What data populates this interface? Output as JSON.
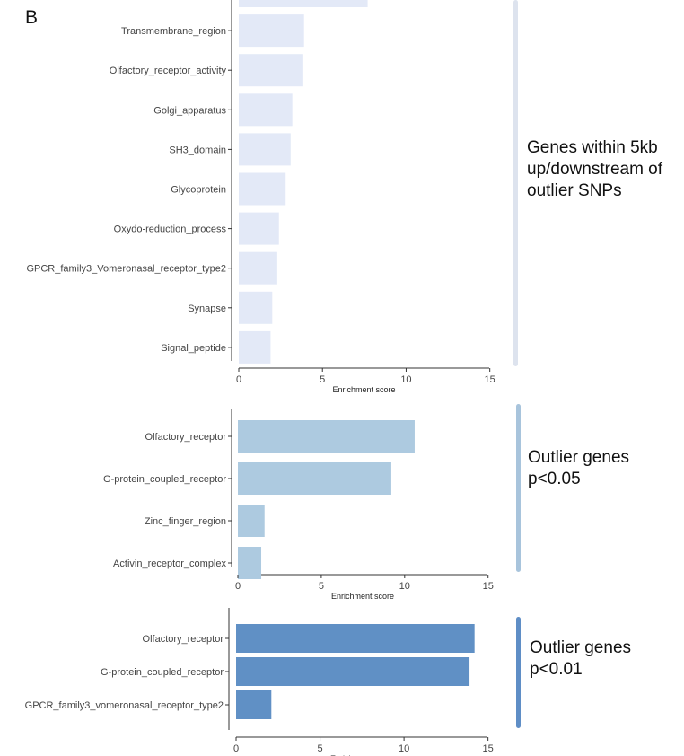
{
  "panel_label": "B",
  "chart_data": [
    {
      "type": "bar",
      "orientation": "horizontal",
      "color": "#e3e9f7",
      "categories": [
        "",
        "Transmembrane_region",
        "Olfactory_receptor_activity",
        "Golgi_apparatus",
        "SH3_domain",
        "Glycoprotein",
        "Oxydo-reduction_process",
        "GPCR_family3_Vomeronasal_receptor_type2",
        "Synapse",
        "Signal_peptide"
      ],
      "values": [
        7.7,
        3.9,
        3.8,
        3.2,
        3.1,
        2.8,
        2.4,
        2.3,
        2.0,
        1.9
      ],
      "xlim": [
        0,
        15.5
      ],
      "xticks": [
        0,
        5,
        10,
        15
      ],
      "xlabel": "Enrichment score",
      "side_label": [
        "Genes within 5kb",
        "up/downstream of",
        "outlier SNPs"
      ],
      "side_bar_color": "#dde3ee"
    },
    {
      "type": "bar",
      "orientation": "horizontal",
      "color": "#adcae0",
      "categories": [
        "Olfactory_receptor",
        "G-protein_coupled_receptor",
        "Zinc_finger_region",
        "Activin_receptor_complex"
      ],
      "values": [
        10.6,
        9.2,
        1.6,
        1.4
      ],
      "xlim": [
        0,
        15.5
      ],
      "xticks": [
        0,
        5,
        10,
        15
      ],
      "xlabel": "Enrichment score",
      "side_label": [
        "Outlier genes",
        "p<0.05"
      ],
      "side_bar_color": "#a8c4dc"
    },
    {
      "type": "bar",
      "orientation": "horizontal",
      "color": "#6090c5",
      "categories": [
        "Olfactory_receptor",
        "G-protein_coupled_receptor",
        "GPCR_family3_vomeronasal_receptor_type2"
      ],
      "values": [
        14.2,
        13.9,
        2.1
      ],
      "xlim": [
        0,
        15.5
      ],
      "xticks": [
        0,
        5,
        10,
        15
      ],
      "xlabel": "Enrichment score",
      "side_label": [
        "Outlier genes",
        "p<0.01"
      ],
      "side_bar_color": "#5f8ec6"
    }
  ]
}
